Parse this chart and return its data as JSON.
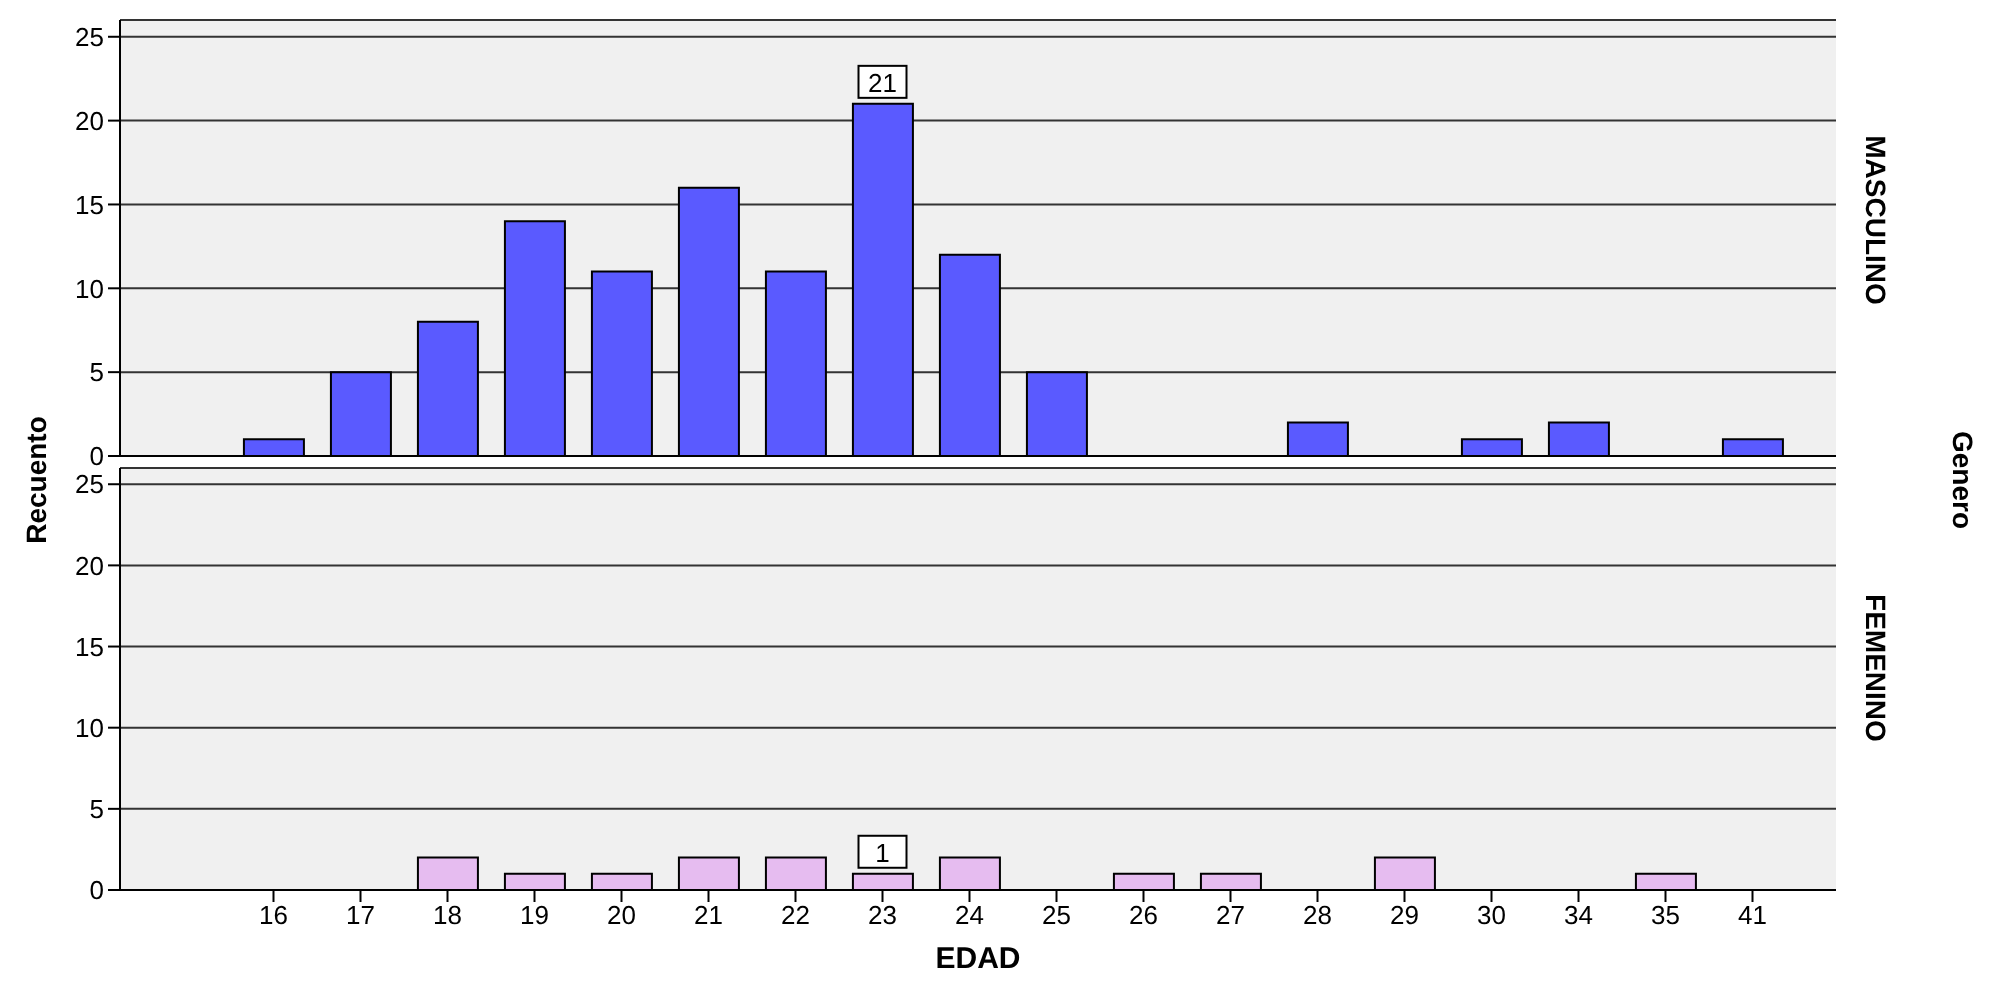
{
  "chart_data": [
    {
      "type": "bar",
      "y2label": "MASCULINO",
      "ylabel": "Recuento",
      "annotations": [
        {
          "text": "21",
          "x": "23",
          "y": 21
        },
        "Genero"
      ],
      "categories": [
        "16",
        "17",
        "18",
        "19",
        "20",
        "21",
        "22",
        "23",
        "24",
        "25",
        "26",
        "27",
        "28",
        "29",
        "30",
        "34",
        "35",
        "41"
      ],
      "values": [
        1,
        5,
        8,
        14,
        11,
        16,
        11,
        21,
        12,
        5,
        0,
        0,
        2,
        0,
        1,
        2,
        0,
        1
      ],
      "color": "#5a5aff",
      "ylim": [
        0,
        26
      ],
      "yticks": [
        0,
        5,
        10,
        15,
        20,
        25
      ],
      "grid": "y",
      "tick_labels": "y"
    },
    {
      "type": "bar",
      "y2label": "FEMENINO",
      "xlabel": "EDAD",
      "annotations": [
        {
          "text": "1",
          "x": "23",
          "y": 1
        }
      ],
      "categories": [
        "16",
        "17",
        "18",
        "19",
        "20",
        "21",
        "22",
        "23",
        "24",
        "25",
        "26",
        "27",
        "28",
        "29",
        "30",
        "34",
        "35",
        "41"
      ],
      "values": [
        0,
        0,
        2,
        1,
        1,
        2,
        2,
        1,
        2,
        0,
        1,
        1,
        0,
        2,
        0,
        0,
        1,
        0
      ],
      "color": "#e6bcf0",
      "ylim": [
        0,
        26
      ],
      "yticks": [
        0,
        5,
        10,
        15,
        20,
        25
      ],
      "grid": "y"
    }
  ]
}
